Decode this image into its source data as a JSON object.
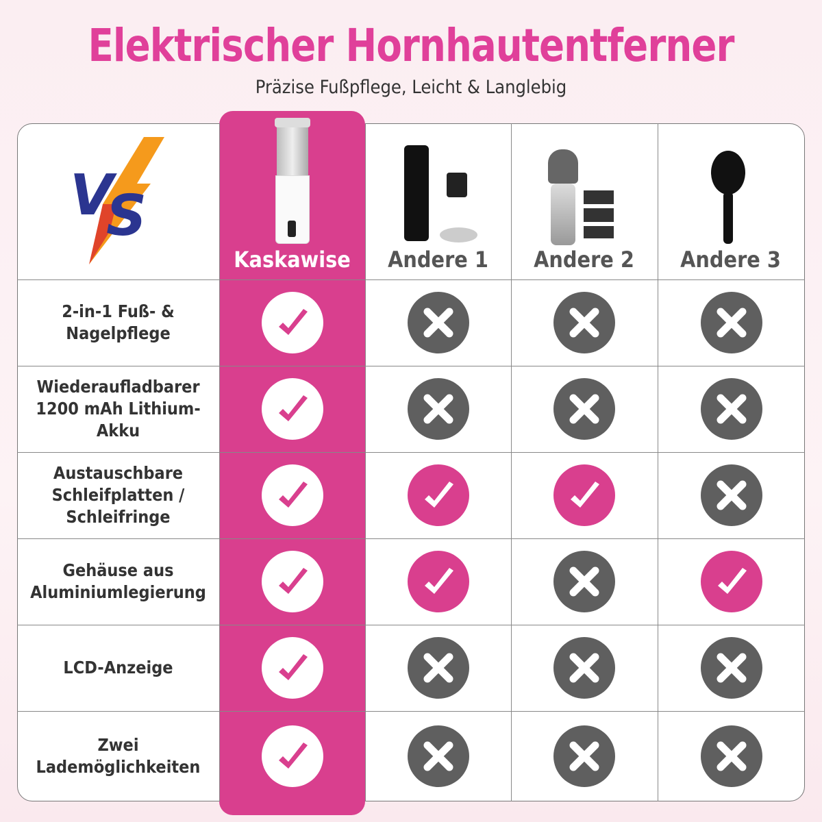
{
  "header": {
    "title": "Elektrischer Hornhautentferner",
    "subtitle": "Präzise Fußpflege, Leicht & Langlebig"
  },
  "logo": {
    "text": "VS"
  },
  "colors": {
    "brand": "#d93f8e",
    "title": "#e0409a",
    "no": "#5f5f5f"
  },
  "products": [
    {
      "name": "Kaskawise"
    },
    {
      "name": "Andere 1"
    },
    {
      "name": "Andere 2"
    },
    {
      "name": "Andere 3"
    }
  ],
  "features": [
    {
      "label": "2-in-1 Fuß- &\nNagelpflege",
      "values": [
        true,
        false,
        false,
        false
      ]
    },
    {
      "label": "Wiederaufladbarer\n1200 mAh Lithium-Akku",
      "values": [
        true,
        false,
        false,
        false
      ]
    },
    {
      "label": "Austauschbare\nSchleifplatten /\nSchleifringe",
      "values": [
        true,
        true,
        true,
        false
      ]
    },
    {
      "label": "Gehäuse aus\nAluminiumlegierung",
      "values": [
        true,
        true,
        false,
        true
      ]
    },
    {
      "label": "LCD-Anzeige",
      "values": [
        true,
        false,
        false,
        false
      ]
    },
    {
      "label": "Zwei\nLademöglichkeiten",
      "values": [
        true,
        false,
        false,
        false
      ]
    }
  ]
}
